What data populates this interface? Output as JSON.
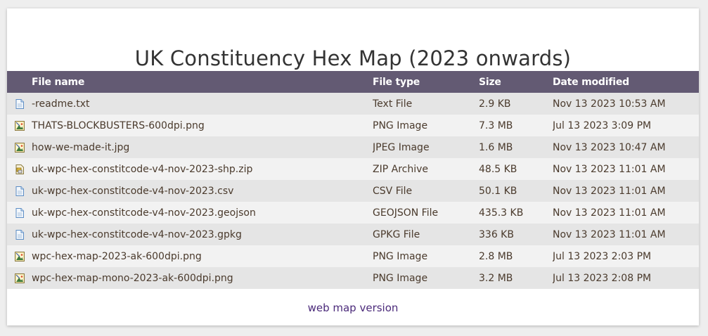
{
  "page": {
    "title": "UK Constituency Hex Map (2023 onwards)"
  },
  "table": {
    "headers": {
      "name": "File name",
      "type": "File type",
      "size": "Size",
      "date": "Date modified"
    },
    "rows": [
      {
        "name": "-readme.txt",
        "type": "Text File",
        "size": "2.9 KB",
        "date": "Nov 13 2023 10:53 AM",
        "icon": "text-file-icon"
      },
      {
        "name": "THATS-BLOCKBUSTERS-600dpi.png",
        "type": "PNG Image",
        "size": "7.3 MB",
        "date": "Jul 13 2023 3:09 PM",
        "icon": "image-file-icon"
      },
      {
        "name": "how-we-made-it.jpg",
        "type": "JPEG Image",
        "size": "1.6 MB",
        "date": "Nov 13 2023 10:47 AM",
        "icon": "image-file-icon"
      },
      {
        "name": "uk-wpc-hex-constitcode-v4-nov-2023-shp.zip",
        "type": "ZIP Archive",
        "size": "48.5 KB",
        "date": "Nov 13 2023 11:01 AM",
        "icon": "zip-file-icon"
      },
      {
        "name": "uk-wpc-hex-constitcode-v4-nov-2023.csv",
        "type": "CSV File",
        "size": "50.1 KB",
        "date": "Nov 13 2023 11:01 AM",
        "icon": "text-file-icon"
      },
      {
        "name": "uk-wpc-hex-constitcode-v4-nov-2023.geojson",
        "type": "GEOJSON File",
        "size": "435.3 KB",
        "date": "Nov 13 2023 11:01 AM",
        "icon": "text-file-icon"
      },
      {
        "name": "uk-wpc-hex-constitcode-v4-nov-2023.gpkg",
        "type": "GPKG File",
        "size": "336 KB",
        "date": "Nov 13 2023 11:01 AM",
        "icon": "text-file-icon"
      },
      {
        "name": "wpc-hex-map-2023-ak-600dpi.png",
        "type": "PNG Image",
        "size": "2.8 MB",
        "date": "Jul 13 2023 2:03 PM",
        "icon": "image-file-icon"
      },
      {
        "name": "wpc-hex-map-mono-2023-ak-600dpi.png",
        "type": "PNG Image",
        "size": "3.2 MB",
        "date": "Jul 13 2023 2:08 PM",
        "icon": "image-file-icon"
      }
    ]
  },
  "footer": {
    "link_label": "web map version"
  },
  "colors": {
    "header_bg": "#635a73",
    "row_odd": "#e5e5e5",
    "row_even": "#f2f2f2",
    "link": "#4b2a7a",
    "text": "#4a3a2c"
  }
}
